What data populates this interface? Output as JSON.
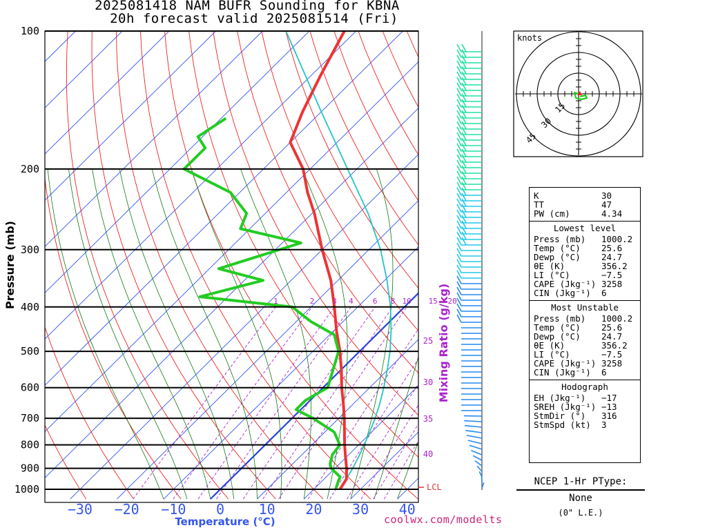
{
  "title": {
    "line1": "2025081418 NAM BUFR Sounding for KBNA",
    "line2": "20h forecast valid 2025081514 (Fri)"
  },
  "axes": {
    "pressure_label": "Pressure (mb)",
    "temperature_label": "Temperature (°C)",
    "mixing_ratio_label": "Mixing Ratio (g/kg)",
    "pressure_ticks": [
      "100",
      "200",
      "300",
      "400",
      "500",
      "600",
      "700",
      "800",
      "900",
      "1000"
    ],
    "temperature_ticks": [
      "−30",
      "−20",
      "−10",
      "0",
      "10",
      "20",
      "30",
      "40"
    ],
    "mixing_ratio_top_labels": [
      "1",
      "2",
      "3",
      "4",
      "6",
      "8",
      "10",
      "15",
      "20"
    ],
    "mixing_ratio_side_labels": [
      "25",
      "30",
      "35",
      "40"
    ],
    "lcl_label": "LCL"
  },
  "hodograph": {
    "units_label": "knots",
    "ring_labels": [
      "15",
      "30",
      "45"
    ]
  },
  "stats": {
    "indices": [
      {
        "label": "K",
        "value": "30"
      },
      {
        "label": "TT",
        "value": "47"
      },
      {
        "label": "PW (cm)",
        "value": "4.34"
      }
    ],
    "lowest_level": {
      "header": "Lowest level",
      "rows": [
        {
          "label": "Press (mb)",
          "value": "1000.2"
        },
        {
          "label": "Temp (°C)",
          "value": "25.6"
        },
        {
          "label": "Dewp (°C)",
          "value": "24.7"
        },
        {
          "label": "θE (K)",
          "value": "356.2"
        },
        {
          "label": "LI (°C)",
          "value": "−7.5"
        },
        {
          "label": "CAPE (Jkg⁻¹)",
          "value": "3258"
        },
        {
          "label": "CIN (Jkg⁻¹)",
          "value": "6"
        }
      ]
    },
    "most_unstable": {
      "header": "Most Unstable",
      "rows": [
        {
          "label": "Press (mb)",
          "value": "1000.2"
        },
        {
          "label": "Temp (°C)",
          "value": "25.6"
        },
        {
          "label": "Dewp (°C)",
          "value": "24.7"
        },
        {
          "label": "θE (K)",
          "value": "356.2"
        },
        {
          "label": "LI (°C)",
          "value": "−7.5"
        },
        {
          "label": "CAPE (Jkg⁻¹)",
          "value": "3258"
        },
        {
          "label": "CIN (Jkg⁻¹)",
          "value": "6"
        }
      ]
    },
    "hodograph_stats": {
      "header": "Hodograph",
      "rows": [
        {
          "label": "EH (Jkg⁻¹)",
          "value": "−17"
        },
        {
          "label": "SREH (Jkg⁻¹)",
          "value": "−13"
        },
        {
          "label": "StmDir (°)",
          "value": "316"
        },
        {
          "label": "StmSpd (kt)",
          "value": "3"
        }
      ]
    }
  },
  "ptype": {
    "title": "NCEP 1-Hr PType:",
    "value": "None",
    "liquid_equiv": "(0\" L.E.)"
  },
  "footer": "coolwx.com/modelts",
  "chart_data": {
    "type": "line",
    "title": "2025081418 NAM BUFR Sounding for KBNA",
    "subtitle": "20h forecast valid 2025081514 (Fri)",
    "xlabel": "Temperature (°C)",
    "ylabel": "Pressure (mb)",
    "y_scale": "log",
    "ylim": [
      1050,
      100
    ],
    "xlim": [
      -40,
      42
    ],
    "series": [
      {
        "color": "#ee3333",
        "points": [
          {
            "p": 1000,
            "t": 25.6
          },
          {
            "p": 950,
            "t": 24.8
          },
          {
            "p": 900,
            "t": 22.5
          },
          {
            "p": 850,
            "t": 19.8
          },
          {
            "p": 800,
            "t": 17.0
          },
          {
            "p": 750,
            "t": 14.2
          },
          {
            "p": 700,
            "t": 11.2
          },
          {
            "p": 650,
            "t": 7.8
          },
          {
            "p": 600,
            "t": 4.0
          },
          {
            "p": 550,
            "t": 0.2
          },
          {
            "p": 500,
            "t": -4.2
          },
          {
            "p": 450,
            "t": -9.5
          },
          {
            "p": 400,
            "t": -15.0
          },
          {
            "p": 350,
            "t": -21.5
          },
          {
            "p": 300,
            "t": -30.0
          },
          {
            "p": 250,
            "t": -39.5
          },
          {
            "p": 225,
            "t": -45.5
          },
          {
            "p": 200,
            "t": -51.5
          },
          {
            "p": 175,
            "t": -60.0
          },
          {
            "p": 150,
            "t": -64.0
          },
          {
            "p": 125,
            "t": -68.0
          },
          {
            "p": 100,
            "t": -72.5
          }
        ]
      },
      {
        "color": "#22cc22",
        "points": [
          {
            "p": 1000,
            "t": 24.7
          },
          {
            "p": 960,
            "t": 23.5
          },
          {
            "p": 940,
            "t": 23.0
          },
          {
            "p": 900,
            "t": 19.2
          },
          {
            "p": 880,
            "t": 18.0
          },
          {
            "p": 840,
            "t": 16.5
          },
          {
            "p": 800,
            "t": 16.0
          },
          {
            "p": 750,
            "t": 12.0
          },
          {
            "p": 700,
            "t": 4.5
          },
          {
            "p": 670,
            "t": -1.0
          },
          {
            "p": 640,
            "t": -1.0
          },
          {
            "p": 600,
            "t": 1.0
          },
          {
            "p": 500,
            "t": -4.5
          },
          {
            "p": 460,
            "t": -9.0
          },
          {
            "p": 430,
            "t": -17.0
          },
          {
            "p": 400,
            "t": -24.0
          },
          {
            "p": 380,
            "t": -46.0
          },
          {
            "p": 350,
            "t": -36.0
          },
          {
            "p": 330,
            "t": -48.0
          },
          {
            "p": 290,
            "t": -36.0
          },
          {
            "p": 270,
            "t": -52.0
          },
          {
            "p": 250,
            "t": -54.0
          },
          {
            "p": 225,
            "t": -62.0
          },
          {
            "p": 200,
            "t": -77.0
          },
          {
            "p": 180,
            "t": -77.0
          },
          {
            "p": 170,
            "t": -81.0
          },
          {
            "p": 155,
            "t": -79.0
          }
        ]
      },
      {
        "color": "#22c4c4",
        "points": [
          {
            "p": 1000,
            "t": 25.6
          },
          {
            "p": 950,
            "t": 24.8
          },
          {
            "p": 900,
            "t": 23.8
          },
          {
            "p": 850,
            "t": 22.6
          },
          {
            "p": 800,
            "t": 21.2
          },
          {
            "p": 750,
            "t": 19.6
          },
          {
            "p": 700,
            "t": 17.8
          },
          {
            "p": 650,
            "t": 15.6
          },
          {
            "p": 600,
            "t": 13.0
          },
          {
            "p": 550,
            "t": 10.0
          },
          {
            "p": 500,
            "t": 6.5
          },
          {
            "p": 450,
            "t": 2.2
          },
          {
            "p": 400,
            "t": -3.0
          },
          {
            "p": 350,
            "t": -9.5
          },
          {
            "p": 300,
            "t": -17.5
          },
          {
            "p": 250,
            "t": -28.0
          },
          {
            "p": 200,
            "t": -42.0
          },
          {
            "p": 150,
            "t": -60.0
          },
          {
            "p": 100,
            "t": -85.0
          }
        ]
      }
    ],
    "freezing_level_isotherm_c": 0,
    "lcl_pressure_mb": 990
  }
}
